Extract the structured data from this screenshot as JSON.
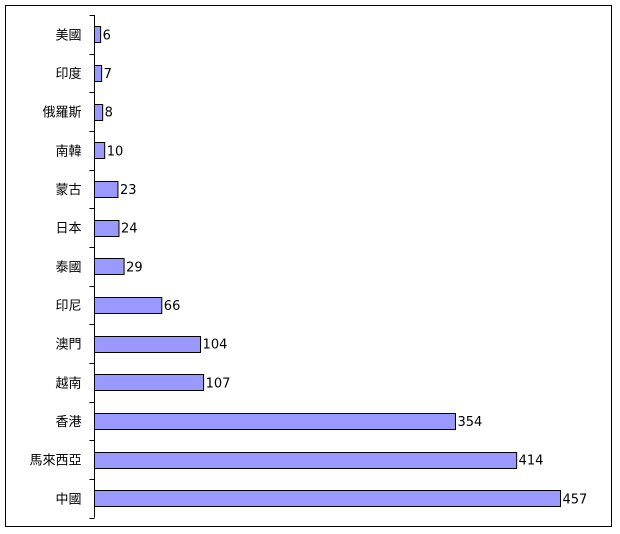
{
  "chart_data": {
    "type": "bar",
    "orientation": "horizontal",
    "categories": [
      "美國",
      "印度",
      "俄羅斯",
      "南韓",
      "蒙古",
      "日本",
      "泰國",
      "印尼",
      "澳門",
      "越南",
      "香港",
      "馬來西亞",
      "中國"
    ],
    "values": [
      6,
      7,
      8,
      10,
      23,
      24,
      29,
      66,
      104,
      107,
      354,
      414,
      457
    ],
    "data_labels": [
      "6",
      "7",
      "8",
      "10",
      "23",
      "24",
      "29",
      "66",
      "104",
      "107",
      "354",
      "414",
      "457"
    ],
    "title": "",
    "xlabel": "",
    "ylabel": "",
    "xlim": [
      0,
      457
    ],
    "grid": false,
    "legend": "none",
    "bar_color": "#9999FF",
    "bar_edge_color": "#000000"
  }
}
